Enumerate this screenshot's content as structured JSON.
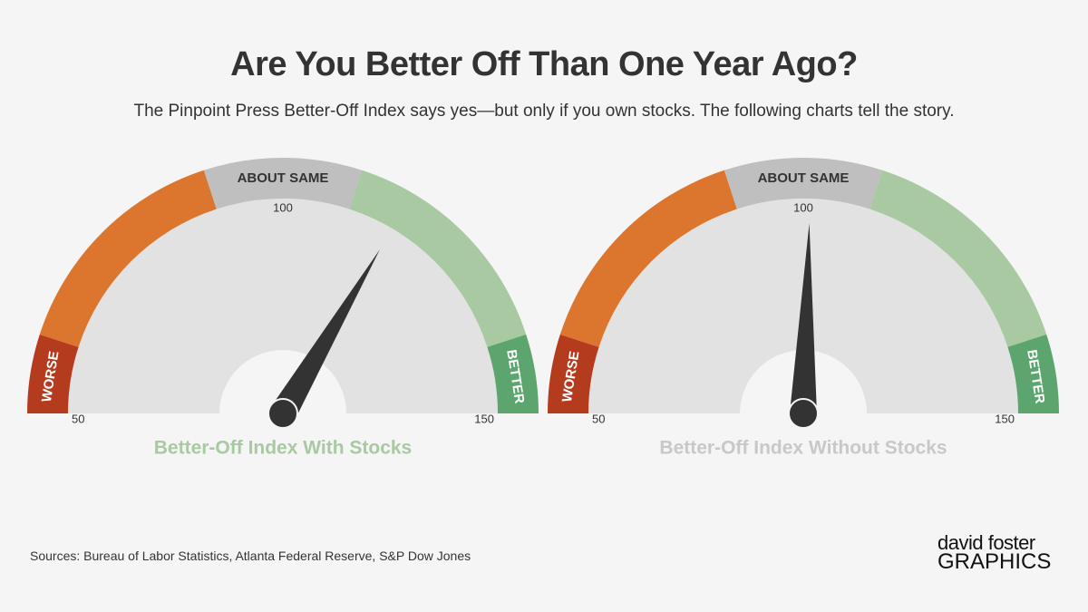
{
  "title": "Are You Better Off Than One Year Ago?",
  "subtitle": "The Pinpoint Press Better-Off Index says yes—but only if you own stocks. The following charts tell the story.",
  "source": "Sources: Bureau of Labor Statistics, Atlanta Federal Reserve, S&P Dow Jones",
  "logo": {
    "line1": "david foster",
    "line2": "GRAPHICS"
  },
  "chart_data": [
    {
      "type": "gauge",
      "title": "Better-Off Index With Stocks",
      "title_color": "#a8c9a2",
      "min": 50,
      "max": 150,
      "tick_labels": [
        "50",
        "100",
        "150"
      ],
      "value": 117,
      "bands": [
        {
          "from": 50,
          "to": 60,
          "color": "#b53b1e",
          "label": "WORSE"
        },
        {
          "from": 60,
          "to": 90,
          "color": "#dc752d",
          "label": ""
        },
        {
          "from": 90,
          "to": 110,
          "color": "#bfbfbf",
          "label": "ABOUT SAME"
        },
        {
          "from": 110,
          "to": 140,
          "color": "#a8c9a2",
          "label": ""
        },
        {
          "from": 140,
          "to": 150,
          "color": "#5ca56e",
          "label": "BETTER"
        }
      ]
    },
    {
      "type": "gauge",
      "title": "Better-Off Index Without Stocks",
      "title_color": "#c8c8c8",
      "min": 50,
      "max": 150,
      "tick_labels": [
        "50",
        "100",
        "150"
      ],
      "value": 101,
      "bands": [
        {
          "from": 50,
          "to": 60,
          "color": "#b53b1e",
          "label": "WORSE"
        },
        {
          "from": 60,
          "to": 90,
          "color": "#dc752d",
          "label": ""
        },
        {
          "from": 90,
          "to": 110,
          "color": "#bfbfbf",
          "label": "ABOUT SAME"
        },
        {
          "from": 110,
          "to": 140,
          "color": "#a8c9a2",
          "label": ""
        },
        {
          "from": 140,
          "to": 150,
          "color": "#5ca56e",
          "label": "BETTER"
        }
      ]
    }
  ]
}
